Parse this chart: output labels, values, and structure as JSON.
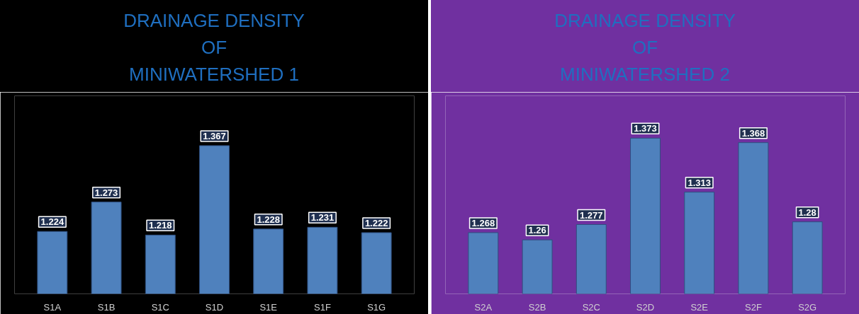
{
  "chart_data": [
    {
      "type": "bar",
      "title": "DRAINAGE DENSITY\nOF\nMINIWATERSHED 1",
      "categories": [
        "S1A",
        "S1B",
        "S1C",
        "S1D",
        "S1E",
        "S1F",
        "S1G"
      ],
      "values": [
        1.224,
        1.273,
        1.218,
        1.367,
        1.228,
        1.231,
        1.222
      ],
      "color": "#4f81bd",
      "ylim": [
        1.12,
        1.45
      ],
      "tick_labels": "x",
      "data_labels": true,
      "grid": false
    },
    {
      "type": "bar",
      "title": "DRAINAGE DENSITY\nOF\nMINIWATERSHED 2",
      "categories": [
        "S2A",
        "S2B",
        "S2C",
        "S2D",
        "S2E",
        "S2F",
        "S2G"
      ],
      "values": [
        1.268,
        1.26,
        1.277,
        1.373,
        1.313,
        1.368,
        1.28
      ],
      "color": "#4f81bd",
      "ylim": [
        1.2,
        1.42
      ],
      "tick_labels": "x",
      "data_labels": true,
      "grid": false
    }
  ]
}
